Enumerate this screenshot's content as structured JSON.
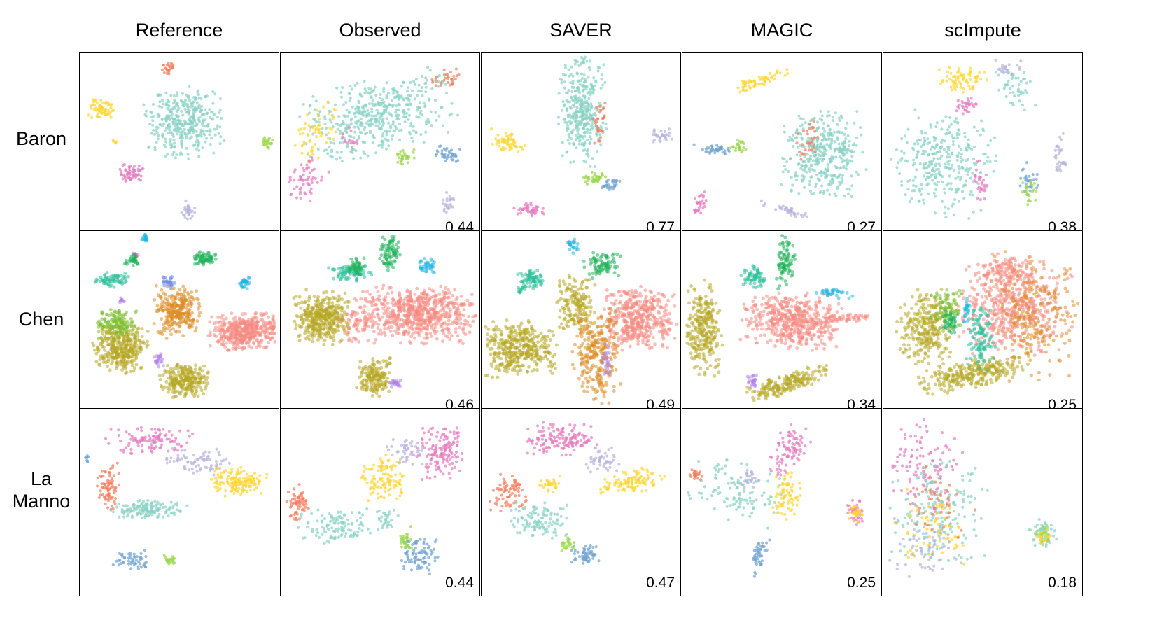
{
  "chart_data": {
    "type": "scatter",
    "description_method_headers": [
      "Reference",
      "Observed",
      "SAVER",
      "MAGIC",
      "scImpute"
    ],
    "dataset_labels": [
      [
        "Baron"
      ],
      [
        "Chen"
      ],
      [
        "La",
        "Manno"
      ]
    ],
    "grid": false,
    "scores": [
      [
        null,
        "0.44",
        "0.77",
        "0.27",
        "0.38"
      ],
      [
        null,
        "0.46",
        "0.49",
        "0.34",
        "0.25"
      ],
      [
        null,
        "0.44",
        "0.47",
        "0.25",
        "0.18"
      ]
    ],
    "cluster_palettes": {
      "Baron": [
        "#89d3c6",
        "#ffd633",
        "#e77bbf",
        "#f47c5c",
        "#6fa3d2",
        "#b6b4dc",
        "#9ad74a"
      ],
      "Chen": [
        "#f58a82",
        "#b7a825",
        "#dc8c26",
        "#7cbf30",
        "#2bbf9b",
        "#1fb35a",
        "#21b6e4",
        "#b17fe8",
        "#e85fd8",
        "#6e8be8"
      ],
      "La Manno": [
        "#89d3c6",
        "#e77bbf",
        "#ffd633",
        "#f47c5c",
        "#6fa3d2",
        "#b6b4dc",
        "#9ad74a"
      ]
    }
  }
}
